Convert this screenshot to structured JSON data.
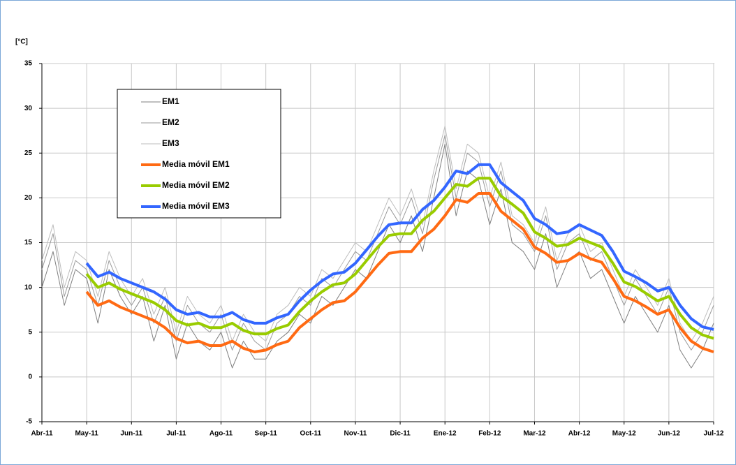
{
  "chart_data": {
    "type": "line",
    "y_label": "[°C]",
    "categories": [
      "Abr-11",
      null,
      null,
      null,
      "May-11",
      null,
      null,
      null,
      "Jun-11",
      null,
      null,
      null,
      "Jul-11",
      null,
      null,
      null,
      "Ago-11",
      null,
      null,
      null,
      "Sep-11",
      null,
      null,
      null,
      "Oct-11",
      null,
      null,
      null,
      "Nov-11",
      null,
      null,
      null,
      "Dic-11",
      null,
      null,
      null,
      "Ene-12",
      null,
      null,
      null,
      "Feb-12",
      null,
      null,
      null,
      "Mar-12",
      null,
      null,
      null,
      "Abr-12",
      null,
      null,
      null,
      "May-12",
      null,
      null,
      null,
      "Jun-12",
      null,
      null,
      null,
      "Jul-12"
    ],
    "ylim": [
      -5,
      35
    ],
    "yticks": [
      -5,
      0,
      5,
      10,
      15,
      20,
      25,
      30,
      35
    ],
    "legend": "upper left",
    "series": [
      {
        "name": "EM1",
        "color": "#7f7f7f",
        "width": 1,
        "values": [
          10,
          14,
          8,
          12,
          11,
          6,
          12,
          9,
          7,
          9,
          4,
          8,
          2,
          6,
          4,
          3,
          5,
          1,
          4,
          2,
          2,
          4,
          5,
          7,
          6,
          9,
          8,
          10,
          12,
          11,
          14,
          17,
          15,
          18,
          14,
          20,
          26,
          18,
          23,
          22,
          17,
          21,
          15,
          14,
          12,
          16,
          10,
          13,
          14,
          11,
          12,
          9,
          6,
          9,
          7,
          5,
          8,
          3,
          1,
          3,
          6
        ]
      },
      {
        "name": "EM2",
        "color": "#9a9a9a",
        "width": 1,
        "values": [
          12,
          16,
          9,
          13,
          12,
          8,
          13,
          10,
          8,
          10,
          6,
          9,
          4,
          8,
          6,
          5,
          7,
          3,
          6,
          4,
          3,
          6,
          7,
          9,
          8,
          11,
          10,
          12,
          14,
          13,
          16,
          19,
          17,
          20,
          16,
          22,
          27,
          20,
          25,
          24,
          19,
          23,
          17,
          16,
          14,
          18,
          12,
          15,
          16,
          13,
          14,
          11,
          8,
          11,
          9,
          7,
          10,
          5,
          3,
          5,
          8
        ]
      },
      {
        "name": "EM3",
        "color": "#bdbdbd",
        "width": 1,
        "values": [
          13,
          17,
          10,
          14,
          13,
          9,
          14,
          11,
          9,
          11,
          7,
          10,
          5,
          9,
          7,
          6,
          8,
          4,
          7,
          5,
          4,
          7,
          8,
          10,
          9,
          12,
          11,
          13,
          15,
          14,
          17,
          20,
          18,
          21,
          17,
          23,
          28,
          21,
          26,
          25,
          20,
          24,
          18,
          17,
          15,
          19,
          13,
          16,
          17,
          14,
          15,
          12,
          9,
          12,
          10,
          8,
          11,
          6,
          4,
          6,
          9
        ]
      },
      {
        "name": "Media móvil EM1",
        "color": "#ff6a13",
        "width": 4,
        "values": [
          null,
          null,
          null,
          null,
          9.5,
          8.0,
          8.5,
          7.8,
          7.3,
          6.8,
          6.3,
          5.5,
          4.3,
          3.8,
          4.0,
          3.5,
          3.5,
          4.0,
          3.2,
          2.8,
          3.0,
          3.6,
          4.0,
          5.5,
          6.5,
          7.5,
          8.3,
          8.5,
          9.5,
          11,
          12.5,
          13.8,
          14.0,
          14.0,
          15.5,
          16.5,
          18.0,
          19.8,
          19.5,
          20.5,
          20.5,
          18.5,
          17.5,
          16.5,
          14.5,
          13.8,
          12.8,
          13.0,
          13.8,
          13.2,
          12.8,
          11.0,
          9.0,
          8.5,
          7.8,
          7.0,
          7.5,
          5.5,
          4.0,
          3.2,
          2.8
        ]
      },
      {
        "name": "Media móvil EM2",
        "color": "#99cc00",
        "width": 4,
        "values": [
          null,
          null,
          null,
          null,
          11.5,
          10.0,
          10.5,
          9.8,
          9.3,
          8.8,
          8.3,
          7.5,
          6.3,
          5.8,
          6.0,
          5.5,
          5.5,
          6.0,
          5.2,
          4.8,
          4.8,
          5.4,
          5.8,
          7.3,
          8.5,
          9.5,
          10.3,
          10.5,
          11.5,
          13,
          14.5,
          15.8,
          16,
          16,
          17.5,
          18.5,
          20,
          21.5,
          21.3,
          22.2,
          22.2,
          20.2,
          19.3,
          18.3,
          16.2,
          15.5,
          14.6,
          14.8,
          15.5,
          15,
          14.5,
          12.7,
          10.6,
          10.1,
          9.3,
          8.5,
          9,
          7,
          5.5,
          4.7,
          4.3
        ]
      },
      {
        "name": "Media móvil EM3",
        "color": "#3366ff",
        "width": 4,
        "values": [
          null,
          null,
          null,
          null,
          12.7,
          11.2,
          11.7,
          11.0,
          10.5,
          10,
          9.5,
          8.7,
          7.5,
          7,
          7.2,
          6.7,
          6.7,
          7.2,
          6.4,
          6.0,
          6.0,
          6.6,
          7.0,
          8.5,
          9.7,
          10.7,
          11.5,
          11.7,
          12.7,
          14.2,
          15.7,
          17.0,
          17.2,
          17.2,
          18.7,
          19.7,
          21.2,
          23,
          22.7,
          23.7,
          23.7,
          21.7,
          20.7,
          19.7,
          17.7,
          17.0,
          16.0,
          16.2,
          17.0,
          16.4,
          15.8,
          14.0,
          11.8,
          11.2,
          10.5,
          9.6,
          10,
          8,
          6.5,
          5.6,
          5.3
        ]
      }
    ]
  }
}
